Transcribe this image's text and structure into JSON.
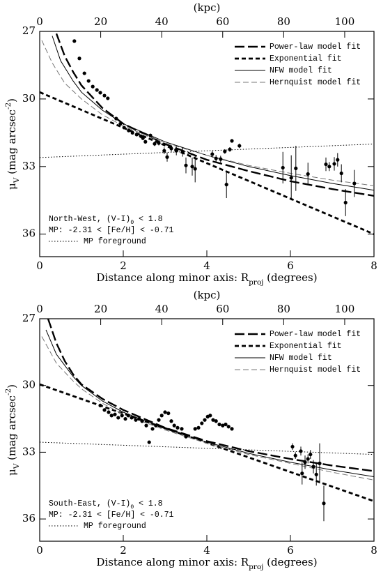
{
  "chart_data": [
    {
      "type": "scatter",
      "region": "North-West",
      "x2label": "(kpc)",
      "xlabel": {
        "main": "Distance along minor axis: R",
        "sub": "proj",
        "tail": " (degrees)"
      },
      "ylabel": {
        "main": "μ",
        "sub": "V",
        "mid": " (mag arcsec",
        "sup": "-2",
        "tail": ")"
      },
      "xlim": [
        0,
        8
      ],
      "xticks": [
        0,
        2,
        4,
        6,
        8
      ],
      "x2lim": [
        0,
        109.6
      ],
      "x2ticks": [
        0,
        20,
        40,
        60,
        80,
        100
      ],
      "ylim": [
        37,
        27
      ],
      "yticks": [
        27,
        30,
        33,
        36
      ],
      "annotation": [
        {
          "main": "North-West, (V-I)",
          "sub": "0",
          "tail": " < 1.8"
        },
        {
          "main": "MP: -2.31 < [Fe/H] < -0.71"
        }
      ],
      "legend": "upper right",
      "points": {
        "color": "#000000",
        "x": [
          0.83,
          0.95,
          1.07,
          1.17,
          1.27,
          1.37,
          1.45,
          1.55,
          1.63,
          1.83,
          1.93,
          2.02,
          2.13,
          2.22,
          2.32,
          2.42,
          2.47,
          2.53,
          2.65,
          2.75,
          2.85,
          2.98,
          3.05,
          3.15,
          3.27,
          3.42,
          3.5,
          3.65,
          3.72,
          4.13,
          4.22,
          4.33,
          4.43,
          4.55,
          4.6,
          4.78,
          4.47,
          5.82,
          6.02,
          6.13,
          6.42,
          6.85,
          6.93,
          7.05,
          7.13,
          7.22,
          7.32,
          7.53
        ],
        "values": [
          27.43,
          28.2,
          28.86,
          29.2,
          29.45,
          29.6,
          29.72,
          29.85,
          29.97,
          30.87,
          31.1,
          31.27,
          31.4,
          31.5,
          31.58,
          31.65,
          31.74,
          31.9,
          31.62,
          31.99,
          31.96,
          32.3,
          32.58,
          32.2,
          32.3,
          32.36,
          32.95,
          33.0,
          33.1,
          32.45,
          32.64,
          32.67,
          32.33,
          32.24,
          31.86,
          32.08,
          33.8,
          33.05,
          33.5,
          33.08,
          33.33,
          32.9,
          33.0,
          32.88,
          32.7,
          33.3,
          34.6,
          33.75
        ],
        "errors": [
          0.05,
          0.05,
          0.05,
          0.05,
          0.05,
          0.05,
          0.05,
          0.05,
          0.05,
          0.06,
          0.06,
          0.07,
          0.07,
          0.07,
          0.07,
          0.08,
          0.08,
          0.08,
          0.08,
          0.1,
          0.1,
          0.15,
          0.2,
          0.15,
          0.2,
          0.2,
          0.35,
          0.4,
          0.6,
          0.15,
          0.15,
          0.15,
          0.1,
          0.1,
          0.08,
          0.1,
          0.6,
          0.7,
          1.0,
          1.0,
          0.5,
          0.3,
          0.2,
          0.3,
          0.3,
          0.4,
          0.6,
          0.6
        ]
      },
      "series": [
        {
          "name": "Power-law model fit",
          "style": "power",
          "color": "#000000",
          "x": [
            0.4,
            0.6,
            0.8,
            1,
            1.5,
            2,
            3,
            4,
            5,
            6,
            7,
            8
          ],
          "values": [
            27.1,
            28.1,
            28.8,
            29.4,
            30.4,
            31.1,
            32.0,
            32.7,
            33.2,
            33.65,
            34.0,
            34.3
          ]
        },
        {
          "name": "Exponential fit",
          "style": "exp",
          "color": "#000000",
          "x": [
            0,
            8
          ],
          "values": [
            29.7,
            36.0
          ]
        },
        {
          "name": "NFW model fit",
          "style": "nfw",
          "color": "#000000",
          "x": [
            0.3,
            0.5,
            0.8,
            1,
            1.5,
            2,
            3,
            4,
            5,
            6,
            7,
            8
          ],
          "values": [
            27.2,
            28.3,
            29.2,
            29.7,
            30.5,
            31.1,
            31.9,
            32.5,
            33.0,
            33.4,
            33.75,
            34.05
          ]
        },
        {
          "name": "Hernquist model fit",
          "style": "hern",
          "color": "#777777",
          "x": [
            0.05,
            0.3,
            0.6,
            1,
            1.5,
            2,
            3,
            4,
            5,
            6,
            7,
            8
          ],
          "values": [
            27.4,
            28.4,
            29.3,
            30.0,
            30.7,
            31.2,
            31.95,
            32.5,
            32.95,
            33.3,
            33.6,
            33.85
          ]
        },
        {
          "name": "MP foreground",
          "style": "fore",
          "color": "#000000",
          "legend": "lower left",
          "x": [
            0,
            8
          ],
          "values": [
            32.6,
            32.0
          ]
        }
      ]
    },
    {
      "type": "scatter",
      "region": "South-East",
      "x2label": "(kpc)",
      "xlabel": {
        "main": "Distance along minor axis: R",
        "sub": "proj",
        "tail": " (degrees)"
      },
      "ylabel": {
        "main": "μ",
        "sub": "V",
        "mid": " (mag arcsec",
        "sup": "-2",
        "tail": ")"
      },
      "xlim": [
        0,
        8
      ],
      "xticks": [
        0,
        2,
        4,
        6,
        8
      ],
      "x2lim": [
        0,
        109.6
      ],
      "x2ticks": [
        0,
        20,
        40,
        60,
        80,
        100
      ],
      "ylim": [
        37,
        27
      ],
      "yticks": [
        27,
        30,
        33,
        36
      ],
      "annotation": [
        {
          "main": "South-East, (V-I)",
          "sub": "0",
          "tail": " < 1.8"
        },
        {
          "main": "MP: -2.31 < [Fe/H] < -0.71"
        }
      ],
      "legend": "upper right",
      "points": {
        "color": "#000000",
        "x": [
          1.45,
          1.55,
          1.65,
          1.72,
          1.8,
          1.88,
          1.97,
          2.05,
          2.12,
          2.2,
          2.3,
          2.38,
          2.45,
          2.55,
          2.62,
          2.7,
          2.78,
          2.85,
          2.92,
          3.0,
          3.08,
          3.15,
          3.22,
          3.3,
          3.4,
          3.5,
          3.72,
          3.8,
          3.88,
          3.95,
          4.02,
          4.08,
          4.15,
          4.22,
          4.3,
          4.38,
          4.45,
          4.52,
          4.6,
          6.05,
          6.12,
          6.25,
          6.28,
          6.35,
          6.42,
          6.48,
          6.55,
          6.62,
          6.7,
          6.8
        ],
        "values": [
          30.9,
          31.1,
          31.2,
          31.35,
          31.3,
          31.45,
          31.35,
          31.5,
          31.35,
          31.45,
          31.55,
          31.5,
          31.6,
          31.8,
          32.55,
          31.95,
          31.8,
          31.55,
          31.35,
          31.2,
          31.25,
          31.6,
          31.8,
          31.9,
          31.95,
          32.3,
          31.95,
          31.9,
          31.7,
          31.55,
          31.4,
          31.35,
          31.55,
          31.6,
          31.75,
          31.8,
          31.75,
          31.85,
          31.95,
          32.75,
          33.15,
          32.95,
          33.95,
          33.45,
          33.3,
          33.1,
          33.65,
          34.0,
          33.5,
          35.3
        ],
        "errors": [
          0.08,
          0.08,
          0.08,
          0.08,
          0.08,
          0.08,
          0.08,
          0.08,
          0.08,
          0.08,
          0.08,
          0.08,
          0.08,
          0.08,
          0.08,
          0.08,
          0.08,
          0.08,
          0.08,
          0.08,
          0.08,
          0.08,
          0.08,
          0.08,
          0.08,
          0.08,
          0.08,
          0.08,
          0.08,
          0.08,
          0.08,
          0.08,
          0.08,
          0.08,
          0.08,
          0.08,
          0.08,
          0.08,
          0.08,
          0.15,
          0.15,
          0.2,
          0.5,
          0.3,
          0.2,
          0.2,
          0.3,
          0.5,
          0.9,
          0.8
        ]
      },
      "series": [
        {
          "name": "Power-law model fit",
          "style": "power",
          "color": "#000000",
          "x": [
            0.2,
            0.4,
            0.6,
            0.8,
            1,
            1.5,
            2,
            3,
            4,
            5,
            6,
            7,
            8
          ],
          "values": [
            27.0,
            28.1,
            28.9,
            29.5,
            29.95,
            30.6,
            31.1,
            31.9,
            32.5,
            32.95,
            33.3,
            33.6,
            33.85
          ]
        },
        {
          "name": "Exponential fit",
          "style": "exp",
          "color": "#000000",
          "x": [
            0,
            8
          ],
          "values": [
            29.95,
            35.2
          ]
        },
        {
          "name": "NFW model fit",
          "style": "nfw",
          "color": "#000000",
          "x": [
            0.15,
            0.4,
            0.8,
            1,
            1.5,
            2,
            3,
            4,
            5,
            6,
            7,
            8
          ],
          "values": [
            27.5,
            28.6,
            29.6,
            30.0,
            30.7,
            31.2,
            31.95,
            32.55,
            33.05,
            33.45,
            33.8,
            34.1
          ]
        },
        {
          "name": "Hernquist model fit",
          "style": "hern",
          "color": "#777777",
          "x": [
            0.05,
            0.4,
            0.8,
            1,
            1.5,
            2,
            3,
            4,
            5,
            6,
            7,
            8
          ],
          "values": [
            27.8,
            29.0,
            29.8,
            30.15,
            30.8,
            31.3,
            32.0,
            32.6,
            33.1,
            33.5,
            33.9,
            34.25
          ]
        },
        {
          "name": "MP foreground",
          "style": "fore",
          "color": "#000000",
          "legend": "lower left",
          "x": [
            0,
            8
          ],
          "values": [
            32.55,
            33.1
          ]
        }
      ]
    }
  ]
}
